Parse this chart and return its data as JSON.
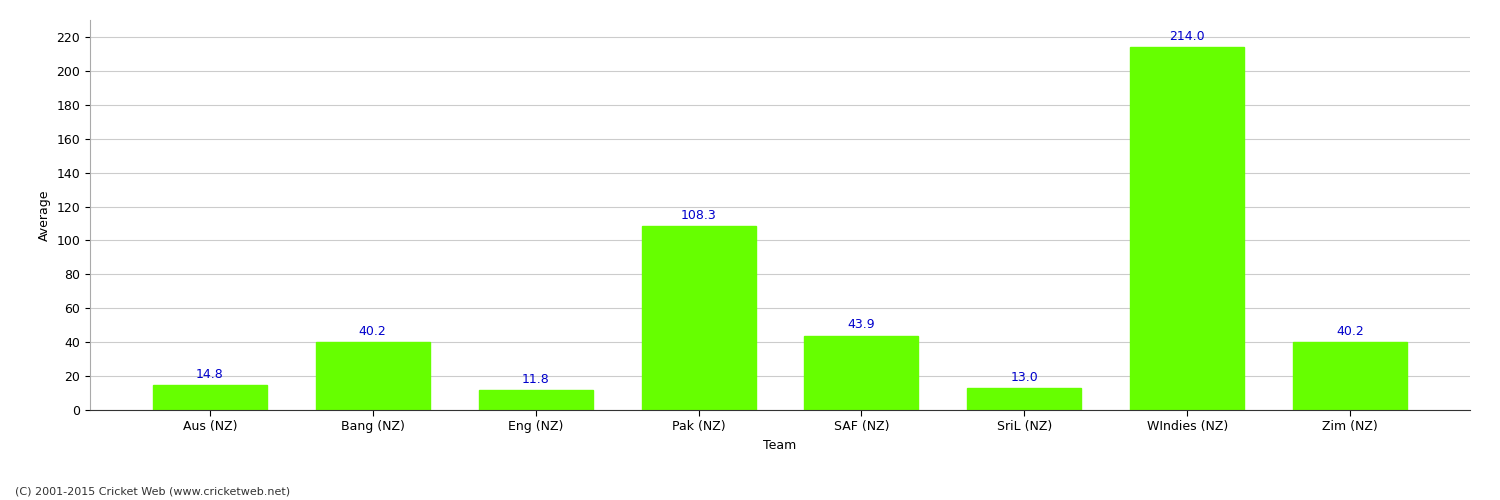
{
  "categories": [
    "Aus (NZ)",
    "Bang (NZ)",
    "Eng (NZ)",
    "Pak (NZ)",
    "SAF (NZ)",
    "SriL (NZ)",
    "WIndies (NZ)",
    "Zim (NZ)"
  ],
  "values": [
    14.8,
    40.2,
    11.8,
    108.3,
    43.9,
    13.0,
    214.0,
    40.2
  ],
  "bar_color": "#66ff00",
  "bar_edgecolor": "#66ff00",
  "label_color": "#0000cc",
  "xlabel": "Team",
  "ylabel": "Average",
  "ylim": [
    0,
    230
  ],
  "yticks": [
    0,
    20,
    40,
    60,
    80,
    100,
    120,
    140,
    160,
    180,
    200,
    220
  ],
  "background_color": "#ffffff",
  "grid_color": "#cccccc",
  "footer": "(C) 2001-2015 Cricket Web (www.cricketweb.net)",
  "label_fontsize": 9,
  "axis_fontsize": 9,
  "footer_fontsize": 8,
  "bar_width": 0.7
}
